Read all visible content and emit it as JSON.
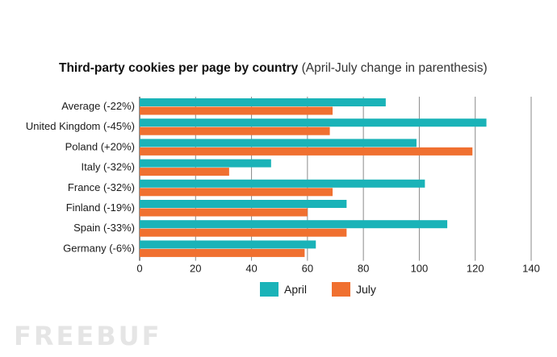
{
  "chart_data": {
    "type": "bar",
    "orientation": "horizontal",
    "title": "Third-party cookies per page by country",
    "subtitle": "(April-July change in parenthesis)",
    "categories": [
      "Average (-22%)",
      "United Kingdom (-45%)",
      "Poland (+20%)",
      "Italy (-32%)",
      "France (-32%)",
      "Finland (-19%)",
      "Spain (-33%)",
      "Germany (-6%)"
    ],
    "series": [
      {
        "name": "April",
        "color": "#1ab3b8",
        "values": [
          88,
          124,
          99,
          47,
          102,
          74,
          110,
          63
        ]
      },
      {
        "name": "July",
        "color": "#f07030",
        "values": [
          69,
          68,
          119,
          32,
          69,
          60,
          74,
          59
        ]
      }
    ],
    "xlim": [
      0,
      140
    ],
    "xticks": [
      "0",
      "20",
      "40",
      "60",
      "80",
      "100",
      "120",
      "140"
    ],
    "xlabel": "",
    "ylabel": "",
    "grid": "vertical",
    "legend": "bottom-center"
  },
  "watermark": "FREEBUF"
}
